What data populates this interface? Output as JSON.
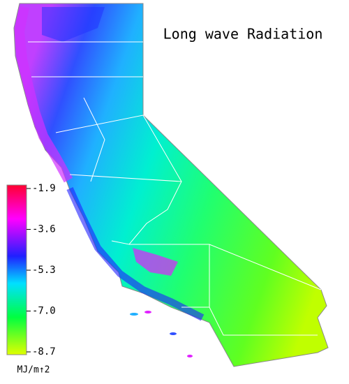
{
  "title": "Long wave Radiation",
  "colorbar": {
    "label": "MJ/m↑2",
    "range": [
      -1.9,
      -8.7
    ],
    "ticks": [
      -1.9,
      -3.6,
      -5.3,
      {
        "value": -7,
        "label": "-7.0"
      },
      -8.7
    ]
  }
}
